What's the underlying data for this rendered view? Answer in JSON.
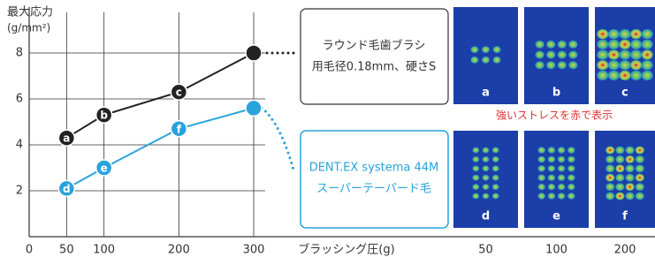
{
  "chart_data": {
    "type": "line",
    "ylabel": [
      "最大応力",
      "(g/mm²)"
    ],
    "xlabel": "ブラッシング圧(g)",
    "x": [
      50,
      100,
      200,
      300
    ],
    "xlim": [
      0,
      300
    ],
    "xticks": [
      0,
      50,
      100,
      200,
      300
    ],
    "ylim": [
      0,
      10
    ],
    "yticks": [
      2,
      4,
      6,
      8
    ],
    "grid": true,
    "series": [
      {
        "name": "ラウンド毛歯ブラシ",
        "description": "用毛径0.18mm、硬さS",
        "color": "#222222",
        "values": [
          4.3,
          5.3,
          6.3,
          8.0
        ],
        "point_labels": [
          "a",
          "b",
          "c",
          null
        ]
      },
      {
        "name": "DENT.EX systema 44M",
        "description": "スーパーテーパード毛",
        "color": "#29a3dc",
        "values": [
          2.1,
          3.0,
          4.7,
          5.6
        ],
        "point_labels": [
          "d",
          "e",
          "f",
          null
        ]
      }
    ]
  },
  "panel_figure": {
    "caption": "強いストレスを赤で表示",
    "rows": [
      [
        "a",
        "b",
        "c"
      ],
      [
        "d",
        "e",
        "f"
      ]
    ],
    "columns": [
      "50",
      "100",
      "200"
    ]
  }
}
